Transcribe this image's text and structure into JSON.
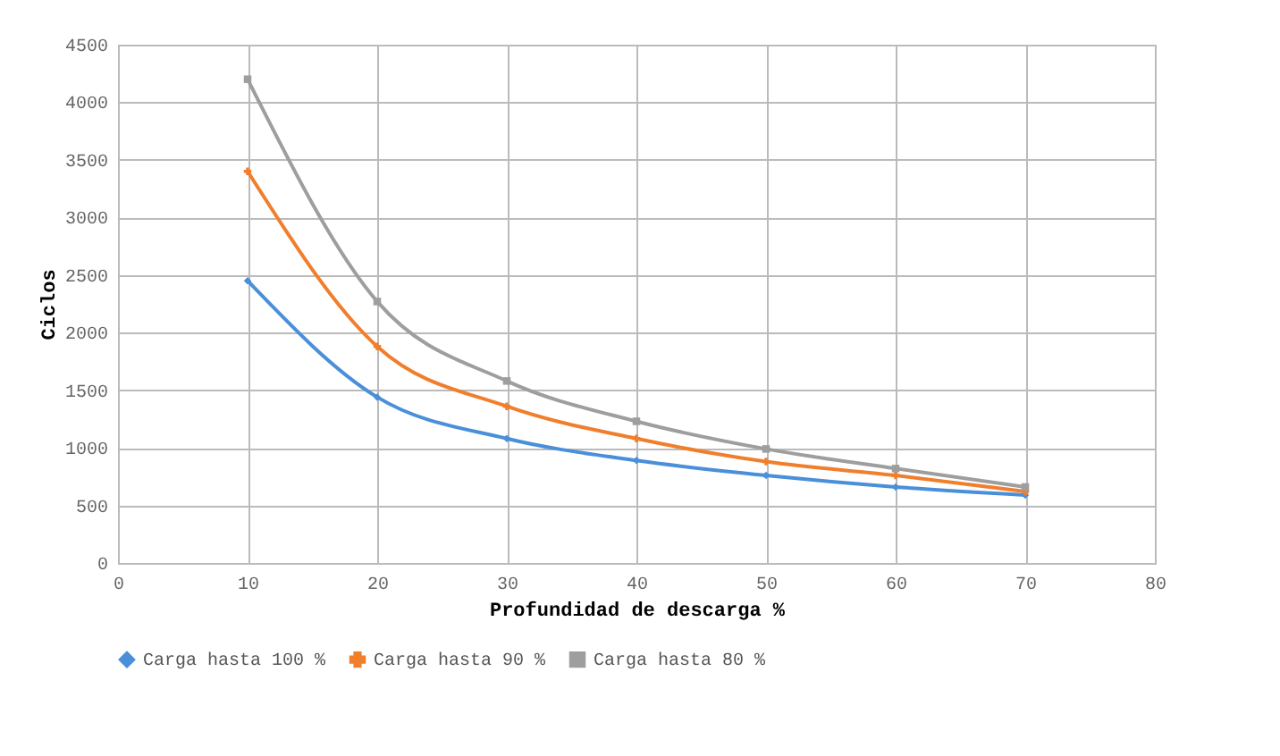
{
  "chart_data": {
    "type": "line",
    "xlabel": "Profundidad de descarga %",
    "ylabel": "Ciclos",
    "x": [
      10,
      20,
      30,
      40,
      50,
      60,
      70
    ],
    "series": [
      {
        "name": "Carga hasta 100 %",
        "color": "#4a8fd9",
        "marker": "diamond",
        "values": [
          2450,
          1440,
          1080,
          890,
          760,
          660,
          590
        ]
      },
      {
        "name": "Carga hasta 90 %",
        "color": "#f07f2d",
        "marker": "cross",
        "values": [
          3400,
          1880,
          1360,
          1080,
          880,
          760,
          620
        ]
      },
      {
        "name": "Carga hasta 80 %",
        "color": "#9e9e9e",
        "marker": "square",
        "values": [
          4200,
          2270,
          1580,
          1230,
          990,
          820,
          660
        ]
      }
    ],
    "xlim": [
      0,
      80
    ],
    "xticks": [
      0,
      10,
      20,
      30,
      40,
      50,
      60,
      70,
      80
    ],
    "ylim": [
      0,
      4500
    ],
    "yticks": [
      0,
      500,
      1000,
      1500,
      2000,
      2500,
      3000,
      3500,
      4000,
      4500
    ],
    "grid": true,
    "legend": "bottom"
  }
}
